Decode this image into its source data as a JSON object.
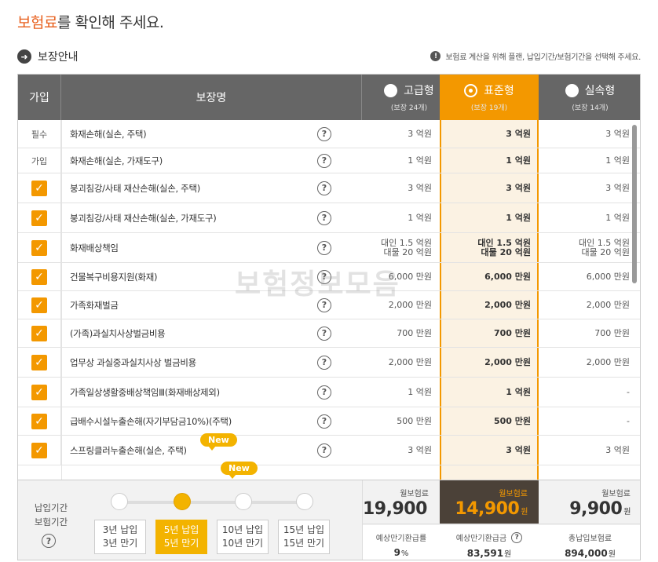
{
  "title": {
    "accent": "보험료",
    "rest": "를 확인해 주세요."
  },
  "section": {
    "label": "보장안내"
  },
  "notice": {
    "text": "보험료 계산을 위해 플랜, 납입기간/보험기간을 선택해 주세요."
  },
  "table": {
    "col_join": "가입",
    "col_name": "보장명",
    "plans": [
      {
        "name": "고급형",
        "sub": "(보장 24개)",
        "selected": false
      },
      {
        "name": "표준형",
        "sub": "(보장 19개)",
        "selected": true
      },
      {
        "name": "실속형",
        "sub": "(보장 14개)",
        "selected": false
      }
    ],
    "rows": [
      {
        "join": "필수",
        "name": "화재손해(실손, 주택)",
        "v1": "3 억원",
        "v2": "3 억원",
        "v3": "3 억원"
      },
      {
        "join": "가입",
        "name": "화재손해(실손, 가재도구)",
        "v1": "1 억원",
        "v2": "1 억원",
        "v3": "1 억원"
      },
      {
        "join": "check",
        "name": "붕괴침강/사태 재산손해(실손, 주택)",
        "v1": "3 억원",
        "v2": "3 억원",
        "v3": "3 억원"
      },
      {
        "join": "check",
        "name": "붕괴침강/사태 재산손해(실손, 가재도구)",
        "v1": "1 억원",
        "v2": "1 억원",
        "v3": "1 억원"
      },
      {
        "join": "check",
        "name": "화재배상책임",
        "v1": "대인 1.5 억원\n대물 20 억원",
        "v2": "대인 1.5 억원\n대물 20 억원",
        "v3": "대인 1.5 억원\n대물 20 억원"
      },
      {
        "join": "check",
        "name": "건물복구비용지원(화재)",
        "v1": "6,000 만원",
        "v2": "6,000 만원",
        "v3": "6,000 만원"
      },
      {
        "join": "check",
        "name": "가족화재벌금",
        "v1": "2,000 만원",
        "v2": "2,000 만원",
        "v3": "2,000 만원"
      },
      {
        "join": "check",
        "name": "(가족)과실치사상벌금비용",
        "v1": "700 만원",
        "v2": "700 만원",
        "v3": "700 만원"
      },
      {
        "join": "check",
        "name": "업무상 과실중과실치사상 벌금비용",
        "v1": "2,000 만원",
        "v2": "2,000 만원",
        "v3": "2,000 만원"
      },
      {
        "join": "check",
        "name": "가족일상생활중배상책임Ⅲ(화재배상제외)",
        "v1": "1 억원",
        "v2": "1 억원",
        "v3": "-"
      },
      {
        "join": "check",
        "name": "급배수시설누출손해(자기부담금10%)(주택)",
        "v1": "500 만원",
        "v2": "500 만원",
        "v3": "-"
      },
      {
        "join": "check",
        "name": "스프링클러누출손해(실손, 주택)",
        "v1": "3 억원",
        "v2": "3 억원",
        "v3": "3 억원"
      }
    ],
    "new_badge": "New",
    "watermark": "보험정보모음"
  },
  "footer": {
    "period_label_1": "납입기간",
    "period_label_2": "보험기간",
    "options": [
      {
        "l1": "3년 납입",
        "l2": "3년 만기",
        "selected": false
      },
      {
        "l1": "5년 납입",
        "l2": "5년 만기",
        "selected": true
      },
      {
        "l1": "10년 납입",
        "l2": "10년 만기",
        "selected": false
      },
      {
        "l1": "15년 납입",
        "l2": "15년 만기",
        "selected": false
      }
    ],
    "premium_label": "월보험료",
    "premiums": [
      "19,900",
      "14,900",
      "9,900"
    ],
    "won": "원",
    "stats": [
      {
        "label": "예상만기환급률",
        "value": "9",
        "unit": "%"
      },
      {
        "label": "예상만기환급금",
        "value": "83,591",
        "unit": "원"
      },
      {
        "label": "총납입보험료",
        "value": "894,000",
        "unit": "원"
      }
    ]
  },
  "colors": {
    "accent": "#f39800",
    "title_accent": "#e8611f",
    "header_bg": "#666666"
  }
}
